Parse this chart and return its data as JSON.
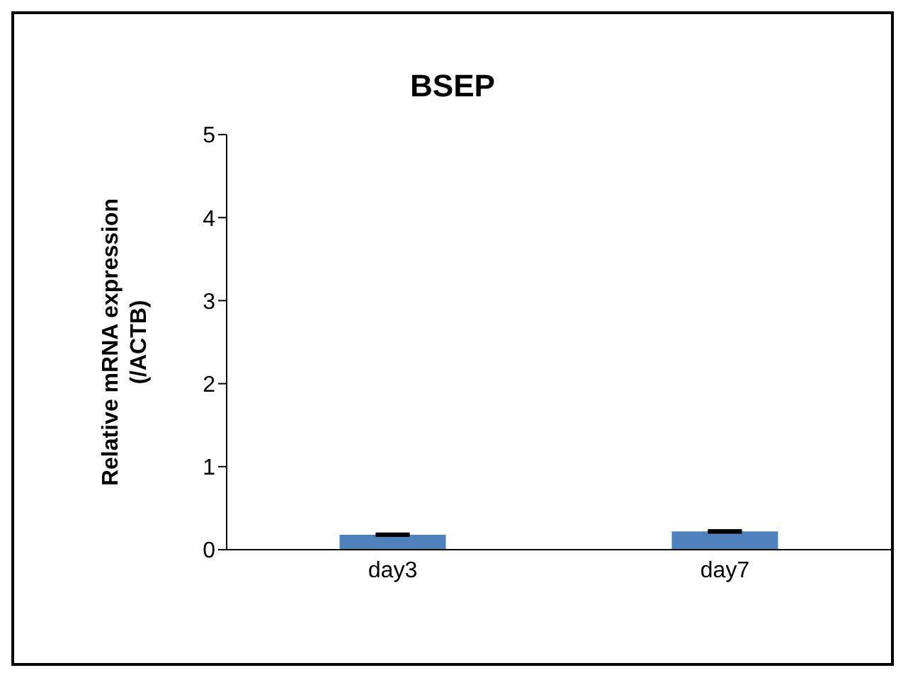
{
  "chart_data": {
    "type": "bar",
    "title": "BSEP",
    "ylabel": "Relative mRNA expression (/ACTB)",
    "categories": [
      "day3",
      "day7"
    ],
    "values": [
      0.18,
      0.22
    ],
    "errors": [
      0.01,
      0.01
    ],
    "color": "#4f81bd",
    "ylim": [
      0,
      5
    ],
    "yticks": [
      0,
      1,
      2,
      3,
      4,
      5
    ],
    "grid": false,
    "legend": false
  }
}
